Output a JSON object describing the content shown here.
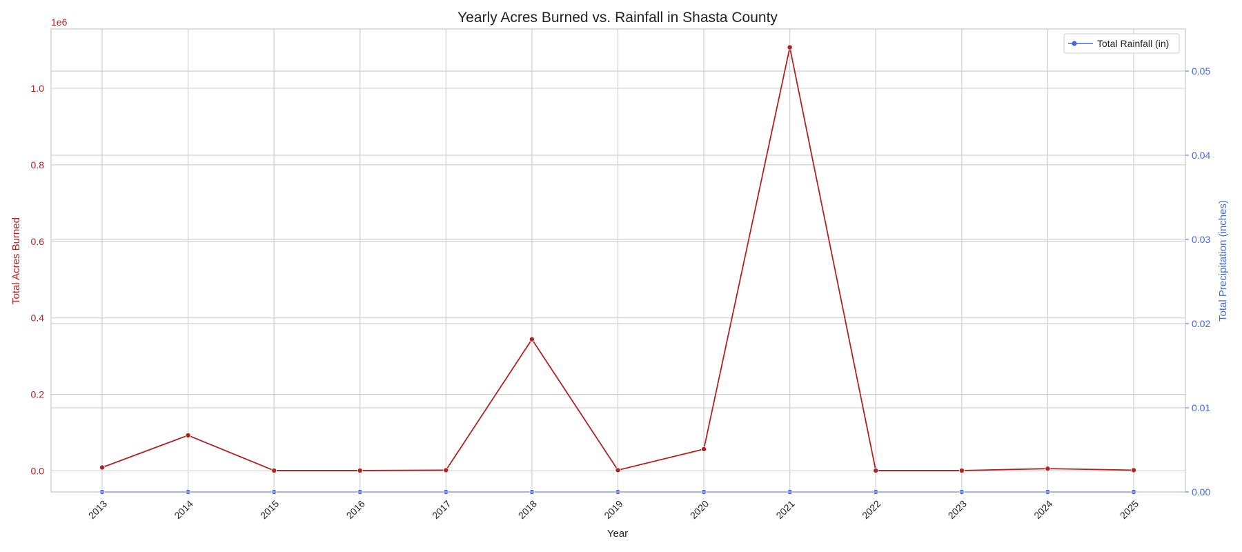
{
  "chart_data": {
    "type": "line",
    "title": "Yearly Acres Burned vs. Rainfall in Shasta County",
    "xlabel": "Year",
    "x": [
      "2013",
      "2014",
      "2015",
      "2016",
      "2017",
      "2018",
      "2019",
      "2020",
      "2021",
      "2022",
      "2023",
      "2024",
      "2025"
    ],
    "left_axis": {
      "label": "Total Acres Burned",
      "offset_text": "1e6",
      "ylim": [
        -0.055,
        1.155
      ],
      "ticks": [
        "0.0",
        "0.2",
        "0.4",
        "0.6",
        "0.8",
        "1.0"
      ],
      "tick_values": [
        0.0,
        0.2,
        0.4,
        0.6,
        0.8,
        1.0
      ],
      "color": "#b22222"
    },
    "right_axis": {
      "label": "Total Precipitation (inches)",
      "ylim": [
        0.0,
        0.055
      ],
      "ticks": [
        "0.00",
        "0.01",
        "0.02",
        "0.03",
        "0.04",
        "0.05"
      ],
      "tick_values": [
        0.0,
        0.01,
        0.02,
        0.03,
        0.04,
        0.05
      ],
      "color": "#4169e1"
    },
    "series": [
      {
        "axis": "left",
        "color": "#b22222",
        "values": [
          0.009,
          0.093,
          0.001,
          0.001,
          0.002,
          0.344,
          0.002,
          0.057,
          1.107,
          0.001,
          0.001,
          0.006,
          0.002
        ]
      },
      {
        "name": "Total Rainfall (in)",
        "axis": "right",
        "color": "#4169e1",
        "values": [
          0,
          0,
          0,
          0,
          0,
          0,
          0,
          0,
          0,
          0,
          0,
          0,
          0
        ]
      }
    ],
    "legend": {
      "position": "top-right",
      "entries": [
        "Total Rainfall (in)"
      ]
    },
    "grid": true
  }
}
